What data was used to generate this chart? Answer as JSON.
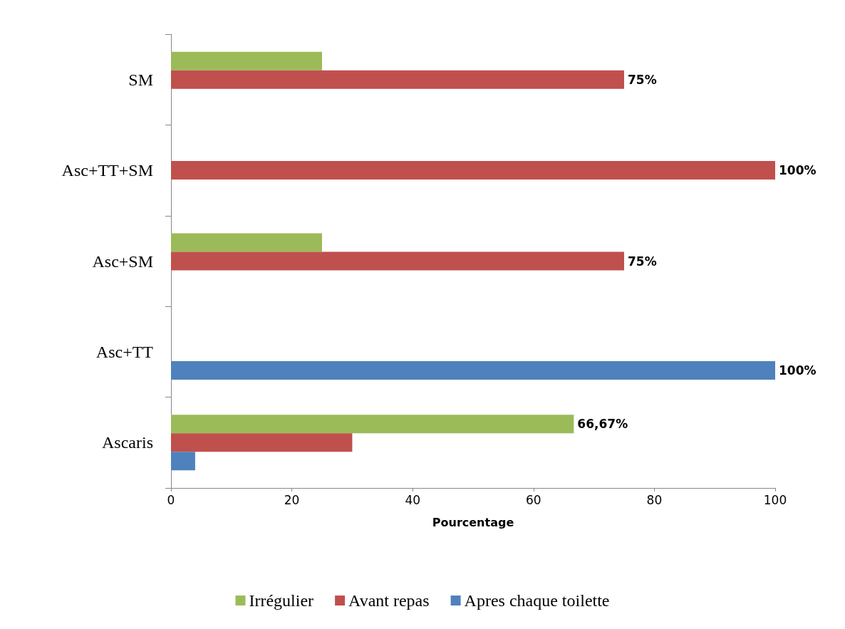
{
  "chart_data": {
    "type": "bar",
    "orientation": "horizontal",
    "xlabel": "Pourcentage",
    "categories": [
      "SM",
      "Asc+TT+SM",
      "Asc+SM",
      "Asc+TT",
      "Ascaris"
    ],
    "series": [
      {
        "name": "Irrégulier",
        "color": "#9bbb59",
        "values": [
          25,
          0,
          25,
          0,
          66.67
        ],
        "value_labels": [
          null,
          null,
          null,
          null,
          "66,67%"
        ]
      },
      {
        "name": "Avant repas",
        "color": "#c0504d",
        "values": [
          75,
          100,
          75,
          0,
          30
        ],
        "value_labels": [
          "75%",
          "100%",
          "75%",
          null,
          null
        ]
      },
      {
        "name": "Apres chaque toilette",
        "color": "#4f81bd",
        "values": [
          0,
          0,
          0,
          100,
          4
        ],
        "value_labels": [
          null,
          null,
          null,
          "100%",
          null
        ]
      }
    ],
    "xlim": [
      0,
      100
    ],
    "xticks": [
      0,
      20,
      40,
      60,
      80,
      100
    ],
    "grid": false,
    "legend": "bottom"
  }
}
